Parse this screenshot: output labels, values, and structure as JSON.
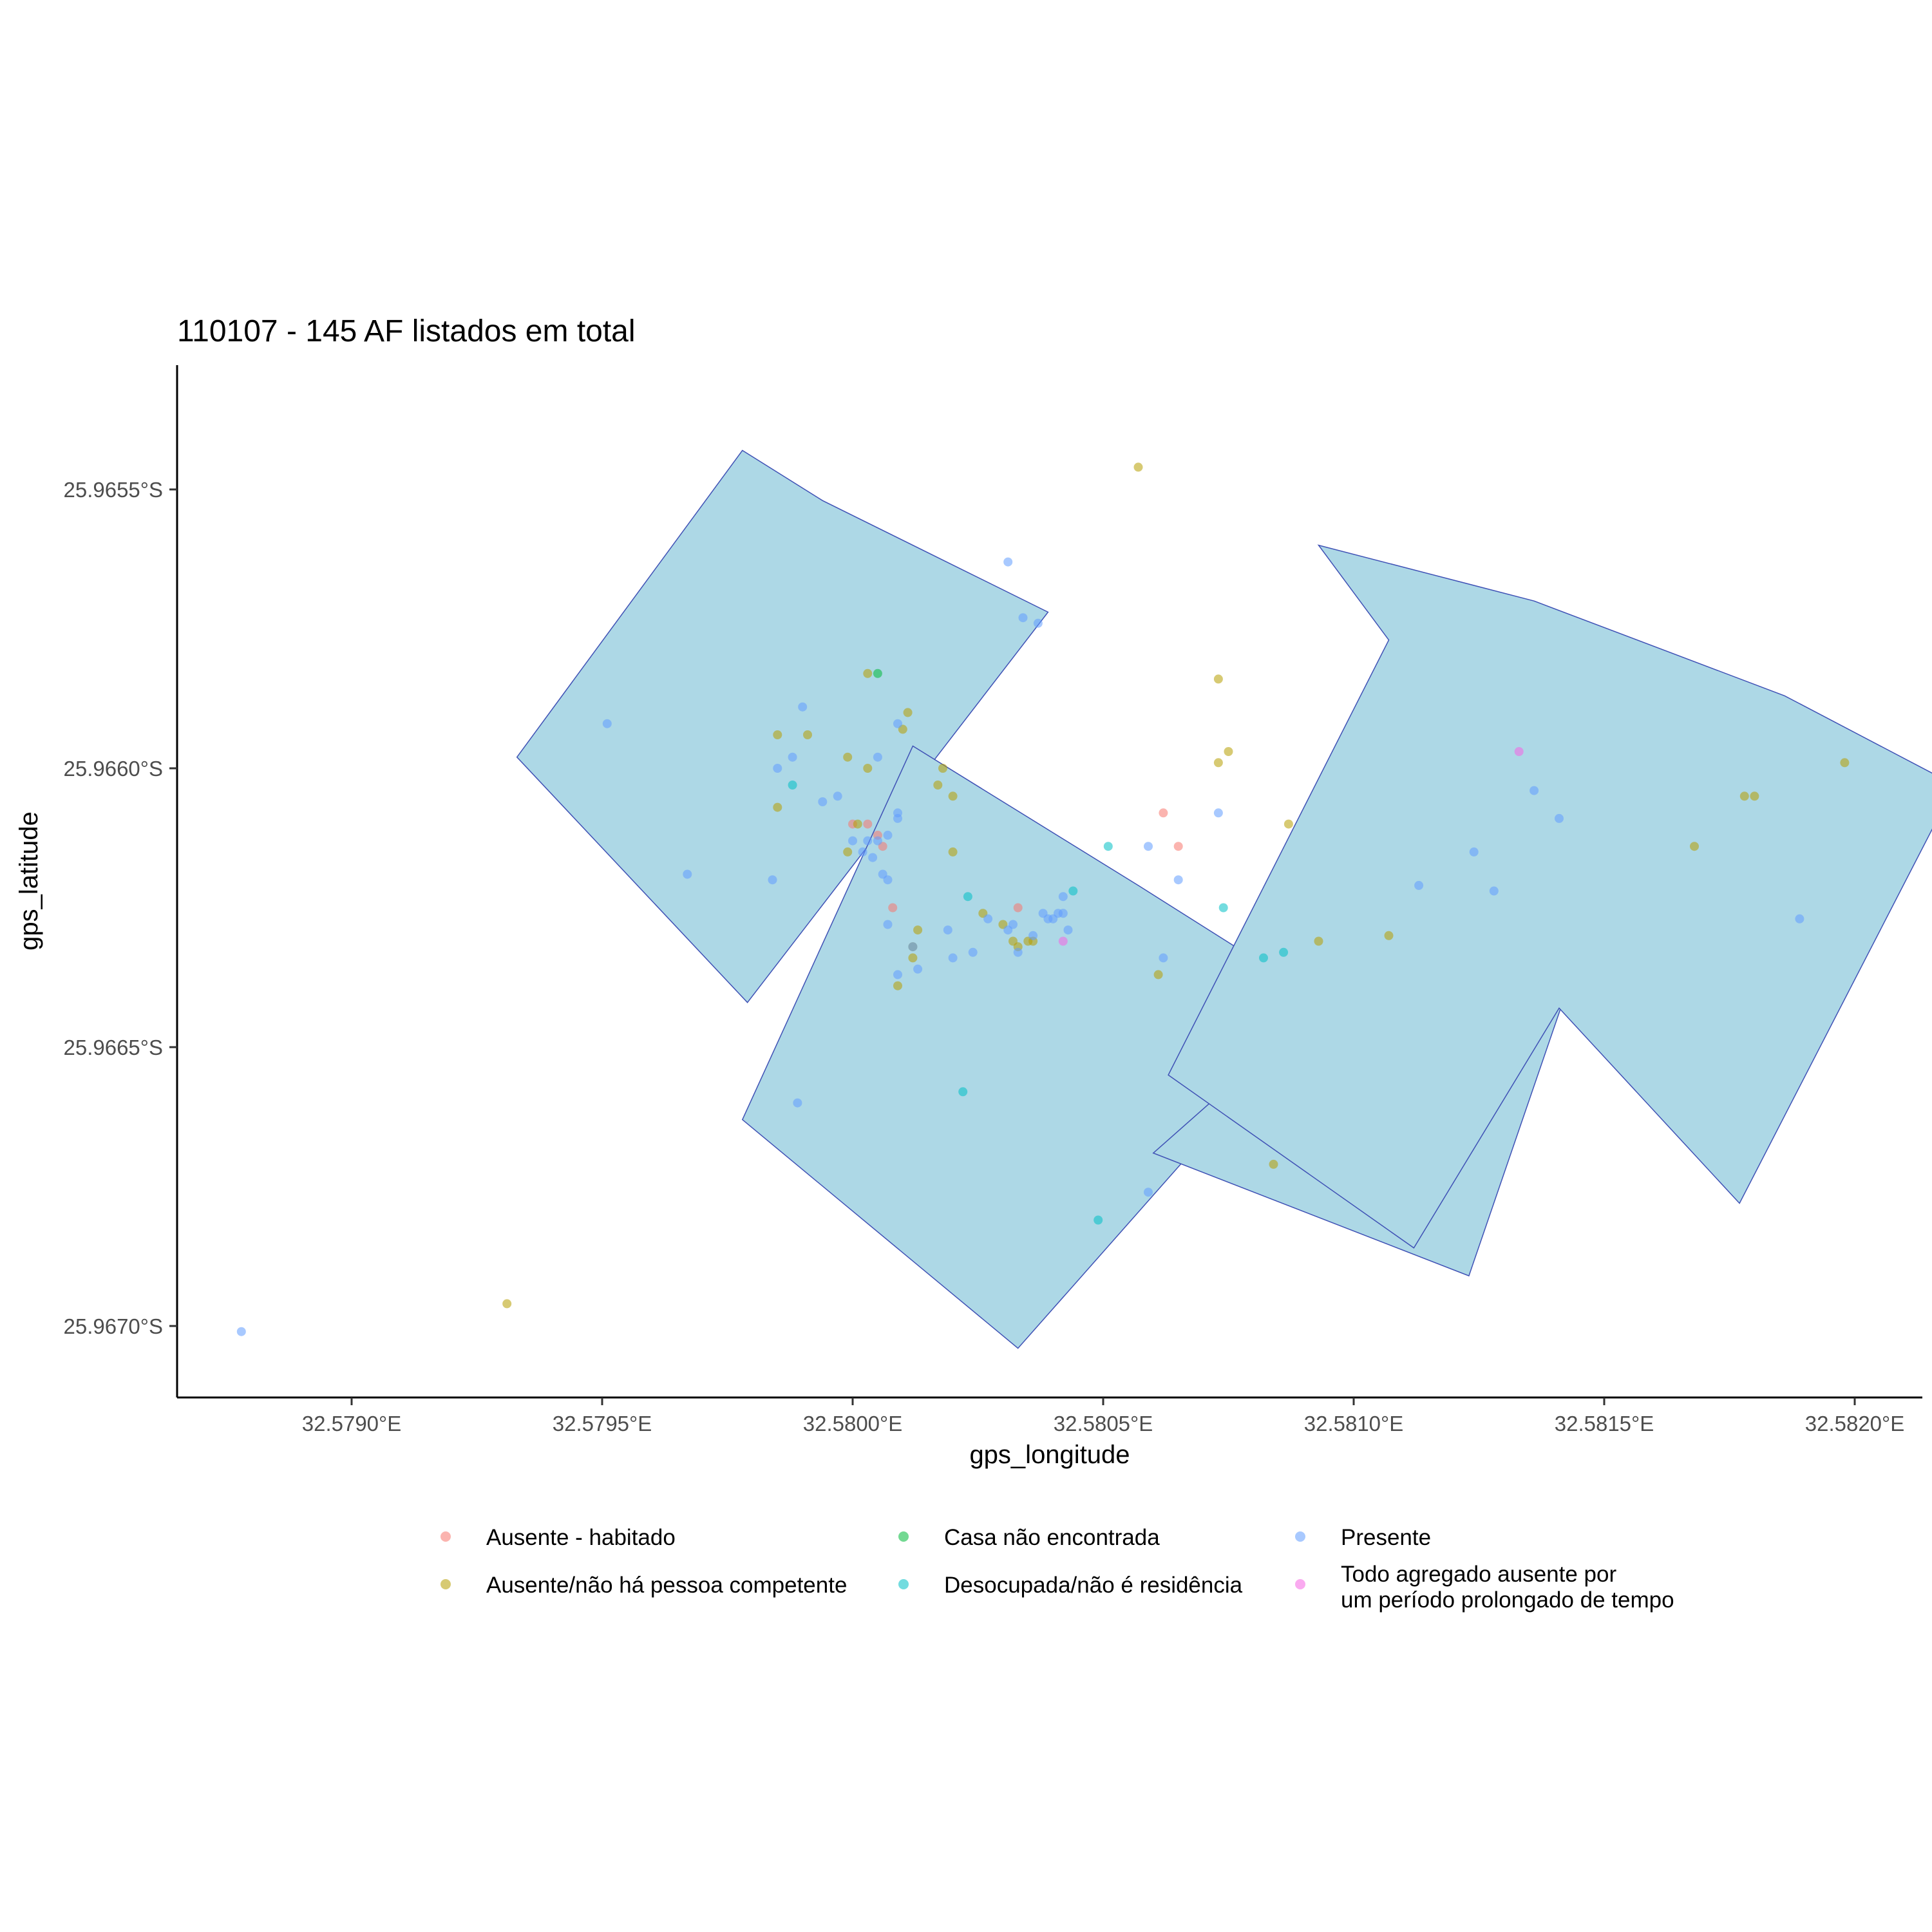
{
  "chart_data": {
    "type": "scatter",
    "title": "110107 - 145 AF listados em total",
    "xlabel": "gps_longitude",
    "ylabel": "gps_latitude",
    "xlim": [
      32.57865,
      32.58215
    ],
    "ylim": [
      -25.96725,
      -25.96536
    ],
    "x_ticks": [
      {
        "value": 32.579,
        "label": "32.5790°E"
      },
      {
        "value": 32.5795,
        "label": "32.5795°E"
      },
      {
        "value": 32.58,
        "label": "32.5800°E"
      },
      {
        "value": 32.5805,
        "label": "32.5805°E"
      },
      {
        "value": 32.581,
        "label": "32.5810°E"
      },
      {
        "value": 32.5815,
        "label": "32.5815°E"
      },
      {
        "value": 32.582,
        "label": "32.5820°E"
      }
    ],
    "y_ticks": [
      {
        "value": -25.9655,
        "label": "25.9655°S"
      },
      {
        "value": -25.966,
        "label": "25.9660°S"
      },
      {
        "value": -25.9665,
        "label": "25.9665°S"
      },
      {
        "value": -25.967,
        "label": "25.9670°S"
      }
    ],
    "grid": false,
    "legend_position": "bottom",
    "polygon_fill": "#add8e6",
    "polygon_stroke": "#3f51b5",
    "polygons": [
      [
        [
          32.57978,
          -25.96543
        ],
        [
          32.57994,
          -25.96552
        ],
        [
          32.58039,
          -25.96572
        ],
        [
          32.57979,
          -25.96642
        ],
        [
          32.57933,
          -25.96598
        ]
      ],
      [
        [
          32.58012,
          -25.96596
        ],
        [
          32.58057,
          -25.96621
        ],
        [
          32.58094,
          -25.96642
        ],
        [
          32.58033,
          -25.96704
        ],
        [
          32.57978,
          -25.96663
        ]
      ],
      [
        [
          32.58094,
          -25.96642
        ],
        [
          32.58117,
          -25.96616
        ],
        [
          32.58144,
          -25.96636
        ],
        [
          32.58123,
          -25.96691
        ],
        [
          32.5806,
          -25.96669
        ]
      ],
      [
        [
          32.58136,
          -25.9657
        ],
        [
          32.58186,
          -25.96587
        ],
        [
          32.5822,
          -25.96603
        ],
        [
          32.58177,
          -25.96678
        ],
        [
          32.58141,
          -25.96643
        ],
        [
          32.58112,
          -25.96686
        ],
        [
          32.58063,
          -25.96655
        ],
        [
          32.58107,
          -25.96577
        ],
        [
          32.58093,
          -25.9656
        ]
      ]
    ],
    "series": [
      {
        "name": "Ausente - habitado",
        "color": "#f8766d",
        "points": [
          [
            32.58,
            -25.9661
          ],
          [
            32.58003,
            -25.9661
          ],
          [
            32.58005,
            -25.96612
          ],
          [
            32.58006,
            -25.96614
          ],
          [
            32.58008,
            -25.96625
          ],
          [
            32.58033,
            -25.96625
          ],
          [
            32.58062,
            -25.96608
          ],
          [
            32.58065,
            -25.96614
          ]
        ]
      },
      {
        "name": "Ausente/não há pessoa competente",
        "color": "#b79f00",
        "points": [
          [
            32.57931,
            -25.96696
          ],
          [
            32.58012,
            -25.96634
          ],
          [
            32.5801,
            -25.96593
          ],
          [
            32.58003,
            -25.966
          ],
          [
            32.58011,
            -25.9659
          ],
          [
            32.58018,
            -25.966
          ],
          [
            32.58003,
            -25.96583
          ],
          [
            32.57985,
            -25.96594
          ],
          [
            32.57991,
            -25.96594
          ],
          [
            32.57999,
            -25.96598
          ],
          [
            32.57985,
            -25.96607
          ],
          [
            32.57999,
            -25.96615
          ],
          [
            32.58017,
            -25.96603
          ],
          [
            32.5802,
            -25.96605
          ],
          [
            32.5802,
            -25.96615
          ],
          [
            32.58026,
            -25.96626
          ],
          [
            32.5803,
            -25.96628
          ],
          [
            32.58032,
            -25.96631
          ],
          [
            32.58033,
            -25.96632
          ],
          [
            32.58035,
            -25.96631
          ],
          [
            32.58036,
            -25.96631
          ],
          [
            32.58012,
            -25.96632
          ],
          [
            32.58013,
            -25.96629
          ],
          [
            32.58073,
            -25.96584
          ],
          [
            32.58073,
            -25.96599
          ],
          [
            32.58075,
            -25.96597
          ],
          [
            32.58084,
            -25.96671
          ],
          [
            32.58087,
            -25.9661
          ],
          [
            32.58093,
            -25.96631
          ],
          [
            32.58061,
            -25.96637
          ],
          [
            32.58057,
            -25.96546
          ],
          [
            32.58107,
            -25.9663
          ],
          [
            32.58168,
            -25.96614
          ],
          [
            32.58178,
            -25.96605
          ],
          [
            32.5818,
            -25.96605
          ],
          [
            32.58198,
            -25.96599
          ],
          [
            32.58009,
            -25.96639
          ],
          [
            32.58001,
            -25.9661
          ]
        ]
      },
      {
        "name": "Casa não encontrada",
        "color": "#00ba38",
        "points": [
          [
            32.58005,
            -25.96583
          ]
        ]
      },
      {
        "name": "Desocupada/não é residência",
        "color": "#00bfc4",
        "points": [
          [
            32.57988,
            -25.96603
          ],
          [
            32.58023,
            -25.96623
          ],
          [
            32.58044,
            -25.96622
          ],
          [
            32.58051,
            -25.96614
          ],
          [
            32.58074,
            -25.96625
          ],
          [
            32.58082,
            -25.96634
          ],
          [
            32.58086,
            -25.96633
          ],
          [
            32.58022,
            -25.96658
          ],
          [
            32.58049,
            -25.96681
          ]
        ]
      },
      {
        "name": "Presente",
        "color": "#619cff",
        "points": [
          [
            32.57878,
            -25.96701
          ],
          [
            32.57951,
            -25.96592
          ],
          [
            32.57967,
            -25.96619
          ],
          [
            32.57984,
            -25.9662
          ],
          [
            32.57985,
            -25.966
          ],
          [
            32.57988,
            -25.96598
          ],
          [
            32.5799,
            -25.96589
          ],
          [
            32.57994,
            -25.96606
          ],
          [
            32.57997,
            -25.96605
          ],
          [
            32.58,
            -25.96613
          ],
          [
            32.58002,
            -25.96615
          ],
          [
            32.58003,
            -25.96613
          ],
          [
            32.58004,
            -25.96616
          ],
          [
            32.58005,
            -25.96613
          ],
          [
            32.58006,
            -25.96619
          ],
          [
            32.58007,
            -25.9662
          ],
          [
            32.58007,
            -25.96628
          ],
          [
            32.58007,
            -25.96612
          ],
          [
            32.58009,
            -25.96608
          ],
          [
            32.58009,
            -25.96609
          ],
          [
            32.58009,
            -25.96592
          ],
          [
            32.58009,
            -25.96637
          ],
          [
            32.58012,
            -25.96632
          ],
          [
            32.58013,
            -25.96636
          ],
          [
            32.58019,
            -25.96629
          ],
          [
            32.58024,
            -25.96633
          ],
          [
            32.58027,
            -25.96627
          ],
          [
            32.58031,
            -25.96563
          ],
          [
            32.58031,
            -25.96629
          ],
          [
            32.58032,
            -25.96628
          ],
          [
            32.58033,
            -25.96633
          ],
          [
            32.58034,
            -25.96573
          ],
          [
            32.58036,
            -25.9663
          ],
          [
            32.58037,
            -25.96574
          ],
          [
            32.58038,
            -25.96626
          ],
          [
            32.58039,
            -25.96627
          ],
          [
            32.5804,
            -25.96627
          ],
          [
            32.58041,
            -25.96626
          ],
          [
            32.58042,
            -25.96626
          ],
          [
            32.58042,
            -25.96623
          ],
          [
            32.58043,
            -25.96629
          ],
          [
            32.58059,
            -25.96614
          ],
          [
            32.58059,
            -25.96676
          ],
          [
            32.58062,
            -25.96634
          ],
          [
            32.58065,
            -25.9662
          ],
          [
            32.58073,
            -25.96608
          ],
          [
            32.58113,
            -25.96621
          ],
          [
            32.58124,
            -25.96615
          ],
          [
            32.58128,
            -25.96622
          ],
          [
            32.58136,
            -25.96604
          ],
          [
            32.58141,
            -25.96609
          ],
          [
            32.58189,
            -25.96627
          ],
          [
            32.57989,
            -25.9666
          ],
          [
            32.5802,
            -25.96634
          ],
          [
            32.58005,
            -25.96598
          ]
        ]
      },
      {
        "name": "Todo agregado ausente por um período prolongado de tempo",
        "color": "#f564e3",
        "points": [
          [
            32.58042,
            -25.96631
          ],
          [
            32.58133,
            -25.96597
          ]
        ]
      }
    ],
    "legend": [
      {
        "line1": "Ausente - habitado",
        "line2": "",
        "color": "#f8766d"
      },
      {
        "line1": "Ausente/não há pessoa competente",
        "line2": "",
        "color": "#b79f00"
      },
      {
        "line1": "Casa não encontrada",
        "line2": "",
        "color": "#00ba38"
      },
      {
        "line1": "Desocupada/não é residência",
        "line2": "",
        "color": "#00bfc4"
      },
      {
        "line1": "Presente",
        "line2": "",
        "color": "#619cff"
      },
      {
        "line1": "Todo agregado ausente por",
        "line2": "um período prolongado de tempo",
        "color": "#f564e3"
      }
    ]
  }
}
